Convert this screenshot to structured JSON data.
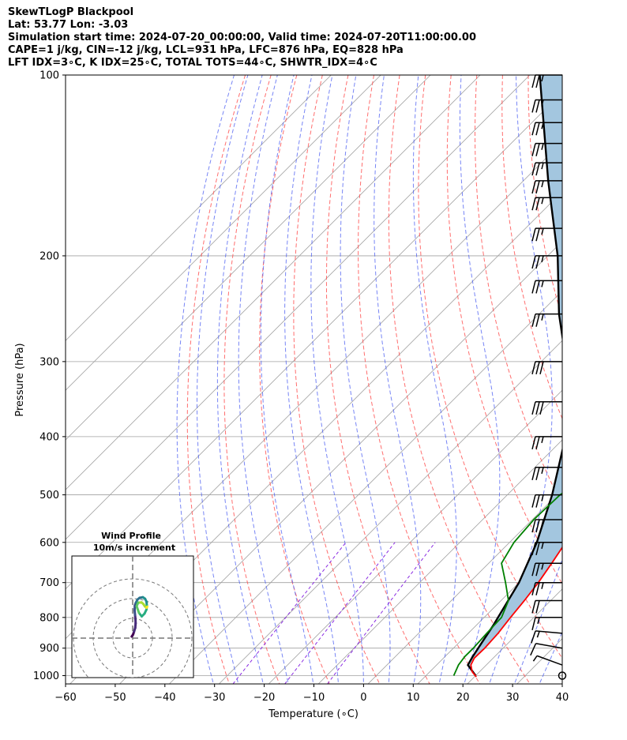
{
  "header": {
    "title": "SkewTLogP Blackpool",
    "location": "Lat: 53.77   Lon: -3.03",
    "times": "Simulation start time: 2024-07-20_00:00:00, Valid time: 2024-07-20T11:00:00.00",
    "params": "CAPE=1 j/kg, CIN=-12 j/kg, LCL=931 hPa, LFC=876 hPa, EQ=828 hPa",
    "indices": "LFT IDX=3∘C, K IDX=25∘C, TOTAL TOTS=44∘C, SHWTR_IDX=4∘C"
  },
  "chart_data": [
    {
      "type": "line",
      "subtype": "skew-T log-P diagram",
      "xlabel": "Temperature (∘C)",
      "ylabel": "Pressure (hPa)",
      "x_ticks": [
        -60,
        -50,
        -40,
        -30,
        -20,
        -10,
        0,
        10,
        20,
        30,
        40
      ],
      "y_ticks": [
        100,
        200,
        300,
        400,
        500,
        600,
        700,
        800,
        900,
        1000
      ],
      "y_scale": "log (inverted)",
      "xlim": [
        -60,
        40
      ],
      "ylim": [
        1050,
        100
      ],
      "colors": {
        "temperature": "#ff0000",
        "dewpoint": "#008000",
        "parcel": "#000000",
        "cape_fill": "#a3c6df",
        "dry_adiabats": "#ff5555",
        "moist_adiabats": "#4a5cf2",
        "mixing_ratio": "#8a2be2",
        "isotherms": "#a0a0a0"
      },
      "temperature": {
        "p": [
          1005,
          985,
          960,
          935,
          900,
          850,
          800,
          750,
          700,
          650,
          600,
          550,
          500,
          450,
          400,
          350,
          300,
          270,
          250,
          235,
          220,
          200,
          185,
          170,
          160,
          150,
          140,
          130,
          120,
          110,
          100
        ],
        "t": [
          20.4,
          18.5,
          16.9,
          16.2,
          16.3,
          16.0,
          15.3,
          14.7,
          13.9,
          12.7,
          11.3,
          8.9,
          6.1,
          4.7,
          3.0,
          0.7,
          -2.9,
          -6.2,
          -9.5,
          -12.3,
          -14.0,
          -15.4,
          -14.6,
          -12.4,
          -11.4,
          -9.9,
          -7.5,
          -4.9,
          -2.5,
          0.0,
          1.8
        ]
      },
      "dewpoint": {
        "p": [
          1000,
          960,
          930,
          900,
          850,
          800,
          750,
          700,
          650,
          600,
          550,
          500,
          470,
          450,
          400,
          350,
          300,
          270,
          250,
          235,
          220,
          205,
          195,
          185,
          175,
          160,
          145,
          130,
          115,
          100
        ],
        "td": [
          15.6,
          14.4,
          14.0,
          14.0,
          13.7,
          13.5,
          11.5,
          7.3,
          2.6,
          0.9,
          0.3,
          0.6,
          2.2,
          3.7,
          1.4,
          -1.3,
          -6.0,
          -11.3,
          -15.4,
          -17.2,
          -18.2,
          -19.6,
          -21.5,
          -25.7,
          -33.2,
          -30.3,
          -29.4,
          -28.4,
          -27.4,
          -26.4
        ]
      },
      "parcel": {
        "p": [
          1000,
          960,
          931,
          876,
          828,
          700,
          600,
          500,
          400,
          300,
          250,
          200,
          150,
          100
        ],
        "t": [
          20.0,
          16.3,
          15.6,
          14.5,
          13.5,
          10.0,
          5.5,
          -1.0,
          -10.0,
          -25.0,
          -36.0,
          -48.0,
          -65.0,
          -88.0
        ]
      },
      "wind_barbs": {
        "p": [
          1000,
          960,
          900,
          850,
          800,
          750,
          700,
          650,
          600,
          550,
          500,
          450,
          400,
          350,
          300,
          250,
          220,
          200,
          180,
          160,
          150,
          140,
          130,
          120,
          110,
          100
        ],
        "direction_deg": [
          300,
          290,
          280,
          275,
          270,
          270,
          270,
          270,
          270,
          270,
          270,
          270,
          270,
          270,
          270,
          270,
          270,
          270,
          270,
          270,
          270,
          270,
          270,
          270,
          270,
          270
        ],
        "speed_kt": [
          2,
          5,
          10,
          15,
          15,
          20,
          25,
          25,
          25,
          25,
          25,
          25,
          25,
          30,
          30,
          25,
          25,
          25,
          25,
          25,
          25,
          25,
          25,
          25,
          25,
          25
        ]
      }
    },
    {
      "type": "scatter",
      "subtype": "hodograph",
      "title": "Wind Profile",
      "subtitle": "10m/s increment",
      "rings_ms": [
        10,
        20,
        30
      ],
      "u": [
        -0.5,
        0.2,
        0.7,
        1.3,
        1.5,
        1.4,
        1.2,
        1.0,
        1.1,
        1.6,
        2.0,
        2.4,
        3.5,
        5.2,
        6.3,
        7.0,
        7.2,
        7.0,
        6.0,
        4.6,
        3.2,
        2.0,
        2.8,
        3.8,
        4.5,
        5.4,
        6.2,
        7.0,
        7.4
      ],
      "v": [
        0.8,
        1.8,
        3.3,
        5.2,
        7.5,
        9.8,
        11.8,
        14.0,
        16.4,
        17.9,
        18.6,
        19.5,
        20.4,
        20.7,
        19.9,
        18.5,
        16.5,
        14.5,
        12.4,
        11.0,
        12.8,
        16.2,
        18.0,
        18.0,
        18.1,
        17.3,
        16.1,
        15.4,
        15.9
      ],
      "colormap": "viridis"
    }
  ]
}
